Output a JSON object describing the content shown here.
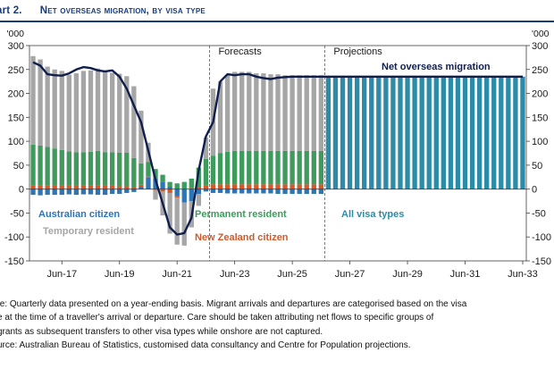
{
  "header": {
    "label": "art 2.",
    "title": "Net overseas migration, by visa type"
  },
  "notes": [
    "te: Quarterly data presented on a year-ending basis. Migrant arrivals and departures are categorised based on the visa",
    "e at the time of a traveller's arrival or departure. Care should be taken attributing net flows to specific groups of",
    "grants as subsequent transfers to other visa types while onshore are not captured.",
    "urce: Australian Bureau of Statistics, customised data consultancy and Centre for Population projections."
  ],
  "colors": {
    "australian_citizen": "#2e75b6",
    "temporary_resident": "#a6a6a6",
    "permanent_resident": "#3e9b5c",
    "new_zealand_citizen": "#d4582a",
    "all_visa_types": "#2c8ca8",
    "line": "#0f1e4d",
    "grid": "#d9d9d9",
    "title": "#1a3b7a"
  },
  "chart_data": {
    "type": "bar",
    "title": "Net overseas migration, by visa type",
    "y_unit_left": "'000",
    "y_unit_right": "'000",
    "ylim": [
      -150,
      300
    ],
    "yticks": [
      -150,
      -100,
      -50,
      0,
      50,
      100,
      150,
      200,
      250,
      300
    ],
    "grid": false,
    "x_tick_labels": [
      "Jun-17",
      "Jun-19",
      "Jun-21",
      "Jun-23",
      "Jun-25",
      "Jun-27",
      "Jun-29",
      "Jun-31",
      "Jun-33"
    ],
    "periods": [
      {
        "label": "Forecasts",
        "from": "Sep-22"
      },
      {
        "label": "Projections",
        "from": "Sep-26"
      }
    ],
    "annotations": [
      "Net overseas migration"
    ],
    "series_labels": {
      "australian_citizen": "Australian citizen",
      "temporary_resident": "Temporary resident",
      "permanent_resident": "Permanent resident",
      "new_zealand_citizen": "New Zealand citizen",
      "all_visa_types": "All visa types"
    },
    "stack_quarters": [
      "Jun-16",
      "Sep-16",
      "Dec-16",
      "Mar-17",
      "Jun-17",
      "Sep-17",
      "Dec-17",
      "Mar-18",
      "Jun-18",
      "Sep-18",
      "Dec-18",
      "Mar-19",
      "Jun-19",
      "Sep-19",
      "Dec-19",
      "Mar-20",
      "Jun-20",
      "Sep-20",
      "Dec-20",
      "Mar-21",
      "Jun-21",
      "Sep-21",
      "Dec-21",
      "Mar-22",
      "Jun-22",
      "Sep-22",
      "Dec-22",
      "Mar-23",
      "Jun-23",
      "Sep-23",
      "Dec-23",
      "Mar-24",
      "Jun-24",
      "Sep-24",
      "Dec-24",
      "Mar-25",
      "Jun-25",
      "Sep-25",
      "Dec-25",
      "Mar-26",
      "Jun-26"
    ],
    "series": [
      {
        "key": "australian_citizen",
        "values": [
          -12,
          -13,
          -12,
          -12,
          -12,
          -11,
          -12,
          -11,
          -11,
          -12,
          -12,
          -10,
          -10,
          -8,
          -6,
          5,
          25,
          22,
          15,
          5,
          -15,
          -28,
          -25,
          -10,
          -5,
          -8,
          -8,
          -9,
          -9,
          -9,
          -9,
          -9,
          -9,
          -9,
          -10,
          -10,
          -10,
          -10,
          -10,
          -10,
          -10
        ]
      },
      {
        "key": "new_zealand_citizen",
        "values": [
          8,
          8,
          8,
          7,
          7,
          7,
          7,
          7,
          8,
          8,
          7,
          7,
          6,
          6,
          5,
          4,
          2,
          -2,
          -5,
          -8,
          -3,
          0,
          2,
          5,
          8,
          10,
          10,
          10,
          10,
          10,
          10,
          10,
          10,
          10,
          10,
          10,
          10,
          10,
          10,
          10,
          10
        ]
      },
      {
        "key": "permanent_resident",
        "values": [
          85,
          83,
          80,
          78,
          75,
          72,
          70,
          70,
          70,
          72,
          70,
          70,
          70,
          70,
          60,
          45,
          30,
          20,
          15,
          10,
          12,
          15,
          20,
          40,
          55,
          60,
          65,
          68,
          70,
          70,
          70,
          70,
          70,
          70,
          70,
          70,
          70,
          70,
          70,
          70,
          70
        ]
      },
      {
        "key": "temporary_resident",
        "values": [
          185,
          180,
          168,
          165,
          165,
          160,
          165,
          170,
          170,
          172,
          170,
          166,
          165,
          160,
          150,
          110,
          40,
          -20,
          -50,
          -85,
          -98,
          -90,
          -55,
          -25,
          45,
          140,
          150,
          160,
          165,
          165,
          165,
          162,
          162,
          160,
          160,
          158,
          158,
          158,
          158,
          158,
          158
        ]
      },
      {
        "key": "all_visa_types",
        "quarters": [
          "Sep-26",
          "Dec-26",
          "Mar-27",
          "Jun-27",
          "Sep-27",
          "Dec-27",
          "Mar-28",
          "Jun-28",
          "Sep-28",
          "Dec-28",
          "Mar-29",
          "Jun-29",
          "Sep-29",
          "Dec-29",
          "Mar-30",
          "Jun-30",
          "Sep-30",
          "Dec-30",
          "Mar-31",
          "Jun-31",
          "Sep-31",
          "Dec-31",
          "Mar-32",
          "Jun-32",
          "Sep-32",
          "Dec-32",
          "Mar-33",
          "Jun-33"
        ],
        "values": [
          235,
          235,
          235,
          235,
          235,
          235,
          235,
          235,
          235,
          235,
          235,
          235,
          235,
          235,
          235,
          235,
          235,
          235,
          235,
          235,
          235,
          235,
          235,
          235,
          235,
          235,
          235,
          235
        ]
      }
    ],
    "line": {
      "name": "Net overseas migration",
      "quarters": [
        "Jun-16",
        "Sep-16",
        "Dec-16",
        "Mar-17",
        "Jun-17",
        "Sep-17",
        "Dec-17",
        "Mar-18",
        "Jun-18",
        "Sep-18",
        "Dec-18",
        "Mar-19",
        "Jun-19",
        "Sep-19",
        "Dec-19",
        "Mar-20",
        "Jun-20",
        "Sep-20",
        "Dec-20",
        "Mar-21",
        "Jun-21",
        "Sep-21",
        "Dec-21",
        "Mar-22",
        "Jun-22",
        "Sep-22",
        "Dec-22",
        "Mar-23",
        "Jun-23",
        "Sep-23",
        "Dec-23",
        "Mar-24",
        "Jun-24",
        "Sep-24",
        "Dec-24",
        "Mar-25",
        "Jun-25",
        "Sep-25",
        "Dec-25",
        "Mar-26",
        "Jun-26",
        "Sep-26",
        "Dec-26",
        "Mar-27",
        "Jun-27",
        "Sep-27",
        "Dec-27",
        "Mar-28",
        "Jun-28",
        "Sep-28",
        "Dec-28",
        "Mar-29",
        "Jun-29",
        "Sep-29",
        "Dec-29",
        "Mar-30",
        "Jun-30",
        "Sep-30",
        "Dec-30",
        "Mar-31",
        "Jun-31",
        "Sep-31",
        "Dec-31",
        "Mar-32",
        "Jun-32",
        "Sep-32",
        "Dec-32",
        "Mar-33",
        "Jun-33"
      ],
      "values": [
        265,
        258,
        240,
        238,
        237,
        242,
        250,
        255,
        253,
        248,
        246,
        248,
        235,
        210,
        175,
        140,
        80,
        20,
        -30,
        -80,
        -95,
        -92,
        -60,
        40,
        110,
        140,
        225,
        240,
        238,
        240,
        240,
        235,
        232,
        230,
        233,
        234,
        235,
        235,
        235,
        235,
        235,
        235,
        235,
        235,
        235,
        235,
        235,
        235,
        235,
        235,
        235,
        235,
        235,
        235,
        235,
        235,
        235,
        235,
        235,
        235,
        235,
        235,
        235,
        235,
        235,
        235,
        235,
        235,
        235
      ]
    }
  }
}
